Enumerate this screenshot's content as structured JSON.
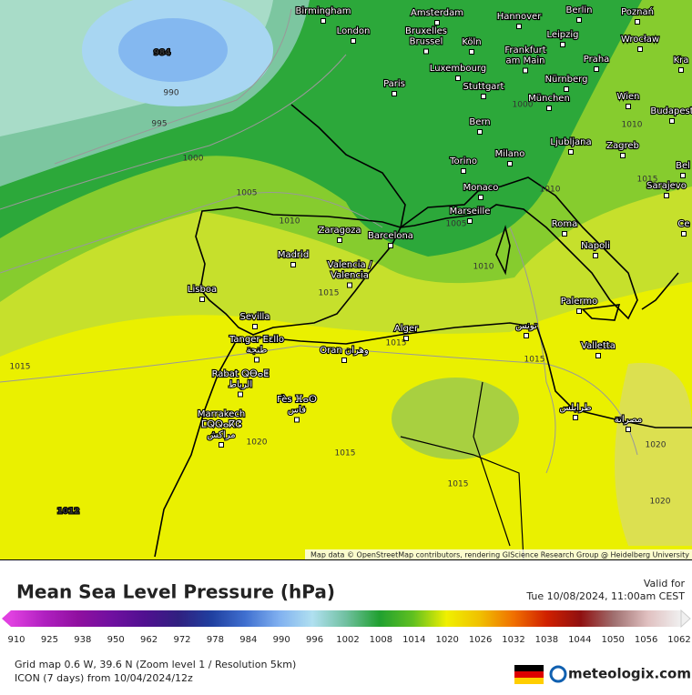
{
  "map": {
    "cities": [
      {
        "lines": [
          "Birmingham"
        ]
      },
      {
        "lines": [
          "London"
        ]
      },
      {
        "lines": [
          "Amsterdam"
        ]
      },
      {
        "lines": [
          "Hannover"
        ]
      },
      {
        "lines": [
          "Berlin"
        ]
      },
      {
        "lines": [
          "Poznań"
        ]
      },
      {
        "lines": [
          "Bruxelles",
          "Brussel"
        ]
      },
      {
        "lines": [
          "Köln"
        ]
      },
      {
        "lines": [
          "Leipzig"
        ]
      },
      {
        "lines": [
          "Wrocław"
        ]
      },
      {
        "lines": [
          "Frankfurt",
          "am Main"
        ]
      },
      {
        "lines": [
          "Praha"
        ]
      },
      {
        "lines": [
          "Kra"
        ]
      },
      {
        "lines": [
          "Luxembourg"
        ]
      },
      {
        "lines": [
          "Paris"
        ]
      },
      {
        "lines": [
          "Stuttgart"
        ]
      },
      {
        "lines": [
          "Nürnberg"
        ]
      },
      {
        "lines": [
          "München"
        ]
      },
      {
        "lines": [
          "Wien"
        ]
      },
      {
        "lines": [
          "Budapest"
        ]
      },
      {
        "lines": [
          "Bern"
        ]
      },
      {
        "lines": [
          "Ljubljana"
        ]
      },
      {
        "lines": [
          "Zagreb"
        ]
      },
      {
        "lines": [
          "Milano"
        ]
      },
      {
        "lines": [
          "Torino"
        ]
      },
      {
        "lines": [
          "Bel"
        ]
      },
      {
        "lines": [
          "Sarajevo"
        ]
      },
      {
        "lines": [
          "Monaco"
        ]
      },
      {
        "lines": [
          "Marseille"
        ]
      },
      {
        "lines": [
          "Roma"
        ]
      },
      {
        "lines": [
          "Ce"
        ]
      },
      {
        "lines": [
          "Zaragoza"
        ]
      },
      {
        "lines": [
          "Barcelona"
        ]
      },
      {
        "lines": [
          "Napoli"
        ]
      },
      {
        "lines": [
          "Madrid"
        ]
      },
      {
        "lines": [
          "Valencia /",
          "Valencia"
        ]
      },
      {
        "lines": [
          "Lisboa"
        ]
      },
      {
        "lines": [
          "Palermo"
        ]
      },
      {
        "lines": [
          "Sevilla"
        ]
      },
      {
        "lines": [
          "تونس"
        ]
      },
      {
        "lines": [
          "Alger"
        ]
      },
      {
        "lines": [
          "Tanger Eεllo",
          "طنجة"
        ]
      },
      {
        "lines": [
          "Valletta"
        ]
      },
      {
        "lines": [
          "Oran وهران"
        ]
      },
      {
        "lines": [
          "Rabat ⵕⴱⴰⵟ",
          "الرباط"
        ]
      },
      {
        "lines": [
          "Fès ⴼⴰⵙ",
          "فاس"
        ]
      },
      {
        "lines": [
          "طرابلس"
        ]
      },
      {
        "lines": [
          "مصراتة"
        ]
      },
      {
        "lines": [
          "Marrakech",
          "ⵎⵕⵕⴰⴽⵛ",
          "مراكش"
        ]
      }
    ],
    "isobar_labels": [
      "984",
      "990",
      "995",
      "1000",
      "1005",
      "1010",
      "1015",
      "1015",
      "1015",
      "1020",
      "1015",
      "1015",
      "1010",
      "1005",
      "1010",
      "1015",
      "1020",
      "1020",
      "1000",
      "1010",
      "1015",
      "1012"
    ],
    "attribution": "Map data © OpenStreetMap contributors, rendering GIScience Research Group @ Heidelberg University"
  },
  "legend": {
    "title": "Mean Sea Level Pressure (hPa)",
    "valid_label": "Valid for",
    "valid_time": "Tue 10/08/2024, 11:00am CEST",
    "ticks": [
      910,
      925,
      938,
      950,
      962,
      972,
      978,
      984,
      990,
      996,
      1002,
      1008,
      1014,
      1020,
      1026,
      1032,
      1038,
      1044,
      1050,
      1056,
      1062
    ],
    "colors": [
      "#e040e0",
      "#b020c0",
      "#9010a0",
      "#7010a0",
      "#501090",
      "#302080",
      "#2040a0",
      "#4070d0",
      "#80b0f0",
      "#b0e0f0",
      "#70c0a0",
      "#20a030",
      "#60c020",
      "#f0f000",
      "#f0c000",
      "#f07000",
      "#d02000",
      "#901010",
      "#a07070",
      "#e0c0c0",
      "#f0f0f0"
    ]
  },
  "footer": {
    "grid": "Grid map 0.6 W, 39.6 N (Zoom level 1 / Resolution 5km)",
    "model": "ICON (7 days) from 10/04/2024/12z",
    "brand": "meteologix.com"
  }
}
